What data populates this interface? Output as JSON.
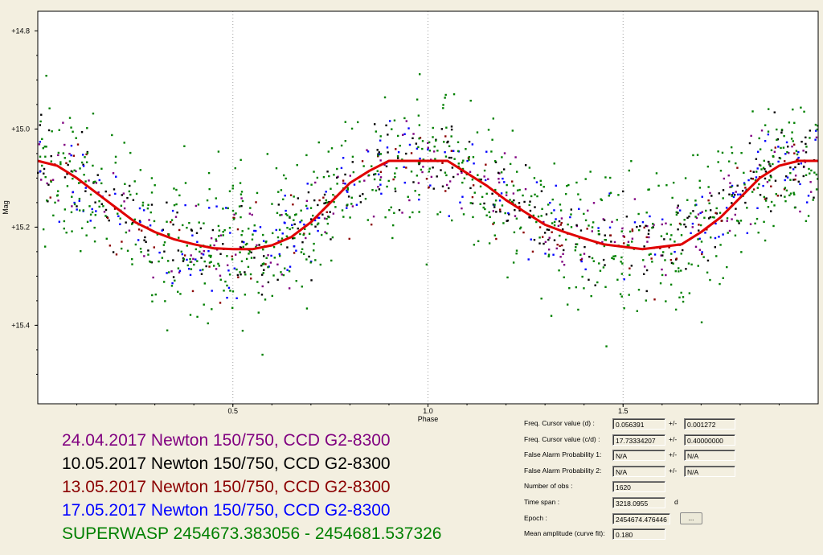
{
  "chart_data": {
    "type": "scatter",
    "xlabel": "Phase",
    "ylabel": "Mag",
    "xlim": [
      0.0,
      2.0
    ],
    "ylim": [
      15.56,
      14.76
    ],
    "y_inverted": true,
    "x_ticks": [
      "0.5",
      "1.0",
      "1.5"
    ],
    "x_tick_values": [
      0.5,
      1.0,
      1.5
    ],
    "y_ticks": [
      "+14.8",
      "+15.0",
      "+15.2",
      "+15.4"
    ],
    "y_tick_values": [
      14.8,
      15.0,
      15.2,
      15.4
    ],
    "grid": "vertical dotted at x ticks",
    "series": [
      {
        "name": "24.04.2017 Newton 150/750, CCD G2-8300",
        "color": "#800080",
        "marker": "dot"
      },
      {
        "name": "10.05.2017 Newton 150/750, CCD G2-8300",
        "color": "#000000",
        "marker": "dot"
      },
      {
        "name": "13.05.2017 Newton 150/750, CCD G2-8300",
        "color": "#8b0000",
        "marker": "dot"
      },
      {
        "name": "17.05.2017 Newton 150/750, CCD G2-8300",
        "color": "#0000ff",
        "marker": "dot"
      },
      {
        "name": "SUPERWASP  2454673.383056  -  2454681.537326",
        "color": "#008000",
        "marker": "dot"
      }
    ],
    "fit_curve": {
      "color": "#e00000",
      "x": [
        0.0,
        0.05,
        0.1,
        0.15,
        0.2,
        0.25,
        0.3,
        0.35,
        0.4,
        0.45,
        0.5,
        0.55,
        0.6,
        0.65,
        0.7,
        0.75,
        0.8,
        0.85,
        0.9,
        0.95,
        1.0,
        1.05,
        1.1,
        1.15,
        1.2,
        1.25,
        1.3,
        1.35,
        1.4,
        1.45,
        1.5,
        1.55,
        1.6,
        1.65,
        1.7,
        1.75,
        1.8,
        1.85,
        1.9,
        1.95,
        2.0
      ],
      "y": [
        15.065,
        15.075,
        15.1,
        15.13,
        15.16,
        15.19,
        15.21,
        15.225,
        15.235,
        15.243,
        15.245,
        15.245,
        15.237,
        15.22,
        15.19,
        15.15,
        15.11,
        15.085,
        15.065,
        15.065,
        15.065,
        15.065,
        15.09,
        15.115,
        15.145,
        15.17,
        15.195,
        15.21,
        15.223,
        15.235,
        15.24,
        15.245,
        15.24,
        15.235,
        15.21,
        15.18,
        15.14,
        15.1,
        15.075,
        15.065,
        15.065
      ]
    },
    "point_counts_per_series": [
      180,
      300,
      120,
      200,
      820
    ]
  },
  "legend": {
    "rows": [
      {
        "text": "24.04.2017 Newton 150/750, CCD G2-8300",
        "color": "#800080"
      },
      {
        "text": "10.05.2017 Newton 150/750, CCD G2-8300",
        "color": "#000000"
      },
      {
        "text": "13.05.2017 Newton 150/750, CCD G2-8300",
        "color": "#8b0000"
      },
      {
        "text": "17.05.2017 Newton 150/750, CCD G2-8300",
        "color": "#0000ff"
      },
      {
        "text": "SUPERWASP  2454673.383056  -  2454681.537326",
        "color": "#008000"
      }
    ]
  },
  "info": {
    "freq_d_label": "Freq. Cursor value (d) :",
    "freq_d_value": "0.056391",
    "freq_d_pm": "+/-",
    "freq_d_err": "0.001272",
    "freq_cd_label": "Freq. Cursor value (c/d) :",
    "freq_cd_value": "17.73334207",
    "freq_cd_pm": "+/-",
    "freq_cd_err": "0.40000000",
    "fap1_label": "False Alarm Probability 1:",
    "fap1_value": "N/A",
    "fap1_pm": "+/-",
    "fap1_err": "N/A",
    "fap2_label": "False Alarm Probability 2:",
    "fap2_value": "N/A",
    "fap2_pm": "+/-",
    "fap2_err": "N/A",
    "nobs_label": "Number of obs :",
    "nobs_value": "1620",
    "span_label": "Time span :",
    "span_value": "3218.0955",
    "span_unit": "d",
    "epoch_label": "Epoch :",
    "epoch_value": "2454674.476446",
    "epoch_button": "...",
    "amp_label": "Mean amplitude (curve fit):",
    "amp_value": "0.180"
  }
}
